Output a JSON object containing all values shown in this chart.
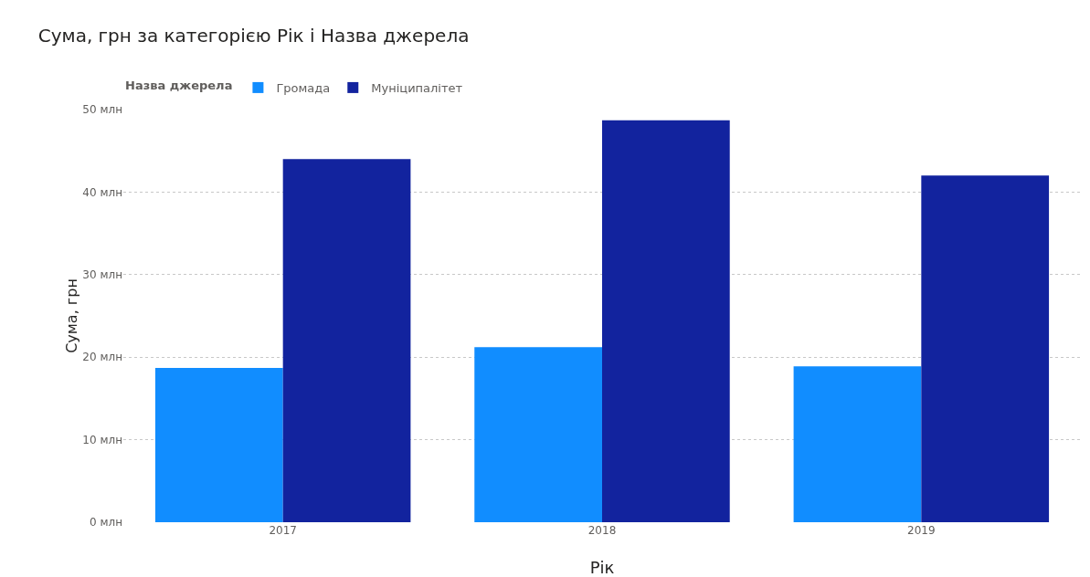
{
  "chart_data": {
    "type": "bar",
    "title": "Сума, грн за категорією Рік і Назва джерела",
    "xlabel": "Рік",
    "ylabel": "Сума, грн",
    "legend_title": "Назва джерела",
    "categories": [
      "2017",
      "2018",
      "2019"
    ],
    "series": [
      {
        "name": "Громада",
        "color": "#118dff",
        "values": [
          18.7,
          21.2,
          18.9
        ]
      },
      {
        "name": "Муніципалітет",
        "color": "#12239e",
        "values": [
          44.0,
          48.7,
          42.0
        ]
      }
    ],
    "ylim": [
      0,
      50
    ],
    "yticks": [
      {
        "value": 0,
        "label": "0 млн"
      },
      {
        "value": 10,
        "label": "10 млн"
      },
      {
        "value": 20,
        "label": "20 млн"
      },
      {
        "value": 30,
        "label": "30 млн"
      },
      {
        "value": 40,
        "label": "40 млн"
      },
      {
        "value": 50,
        "label": "50 млн"
      }
    ],
    "grid": "y",
    "legend": "top left"
  }
}
